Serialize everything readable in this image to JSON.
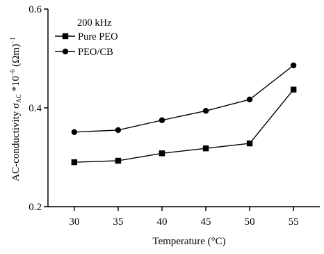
{
  "chart_data": {
    "type": "line",
    "title": "",
    "xlabel": "Temperature (°C)",
    "ylabel": "AC-conductivity σ",
    "ylabel_sub": "AC",
    "ylabel_rest": " *10",
    "ylabel_exp": "−6",
    "ylabel_unit": " (Ωm)",
    "ylabel_unit_exp": "−1",
    "x": [
      30,
      35,
      40,
      45,
      50,
      55
    ],
    "x_tick_labels": [
      "30",
      "35",
      "40",
      "45",
      "50",
      "55"
    ],
    "xlim": [
      27,
      58
    ],
    "ylim": [
      0.2,
      0.6
    ],
    "y_ticks": [
      0.2,
      0.4,
      0.6
    ],
    "y_tick_labels": [
      "0.2",
      "0.4",
      "0.6"
    ],
    "grid": false,
    "legend": {
      "title": "200 kHz",
      "placement": "top-left"
    },
    "series": [
      {
        "name": "Pure PEO",
        "marker": "square",
        "values": [
          0.29,
          0.293,
          0.308,
          0.318,
          0.328,
          0.437
        ]
      },
      {
        "name": "PEO/CB",
        "marker": "circle",
        "values": [
          0.351,
          0.355,
          0.375,
          0.394,
          0.417,
          0.486
        ]
      }
    ],
    "line_color": "#000000"
  }
}
